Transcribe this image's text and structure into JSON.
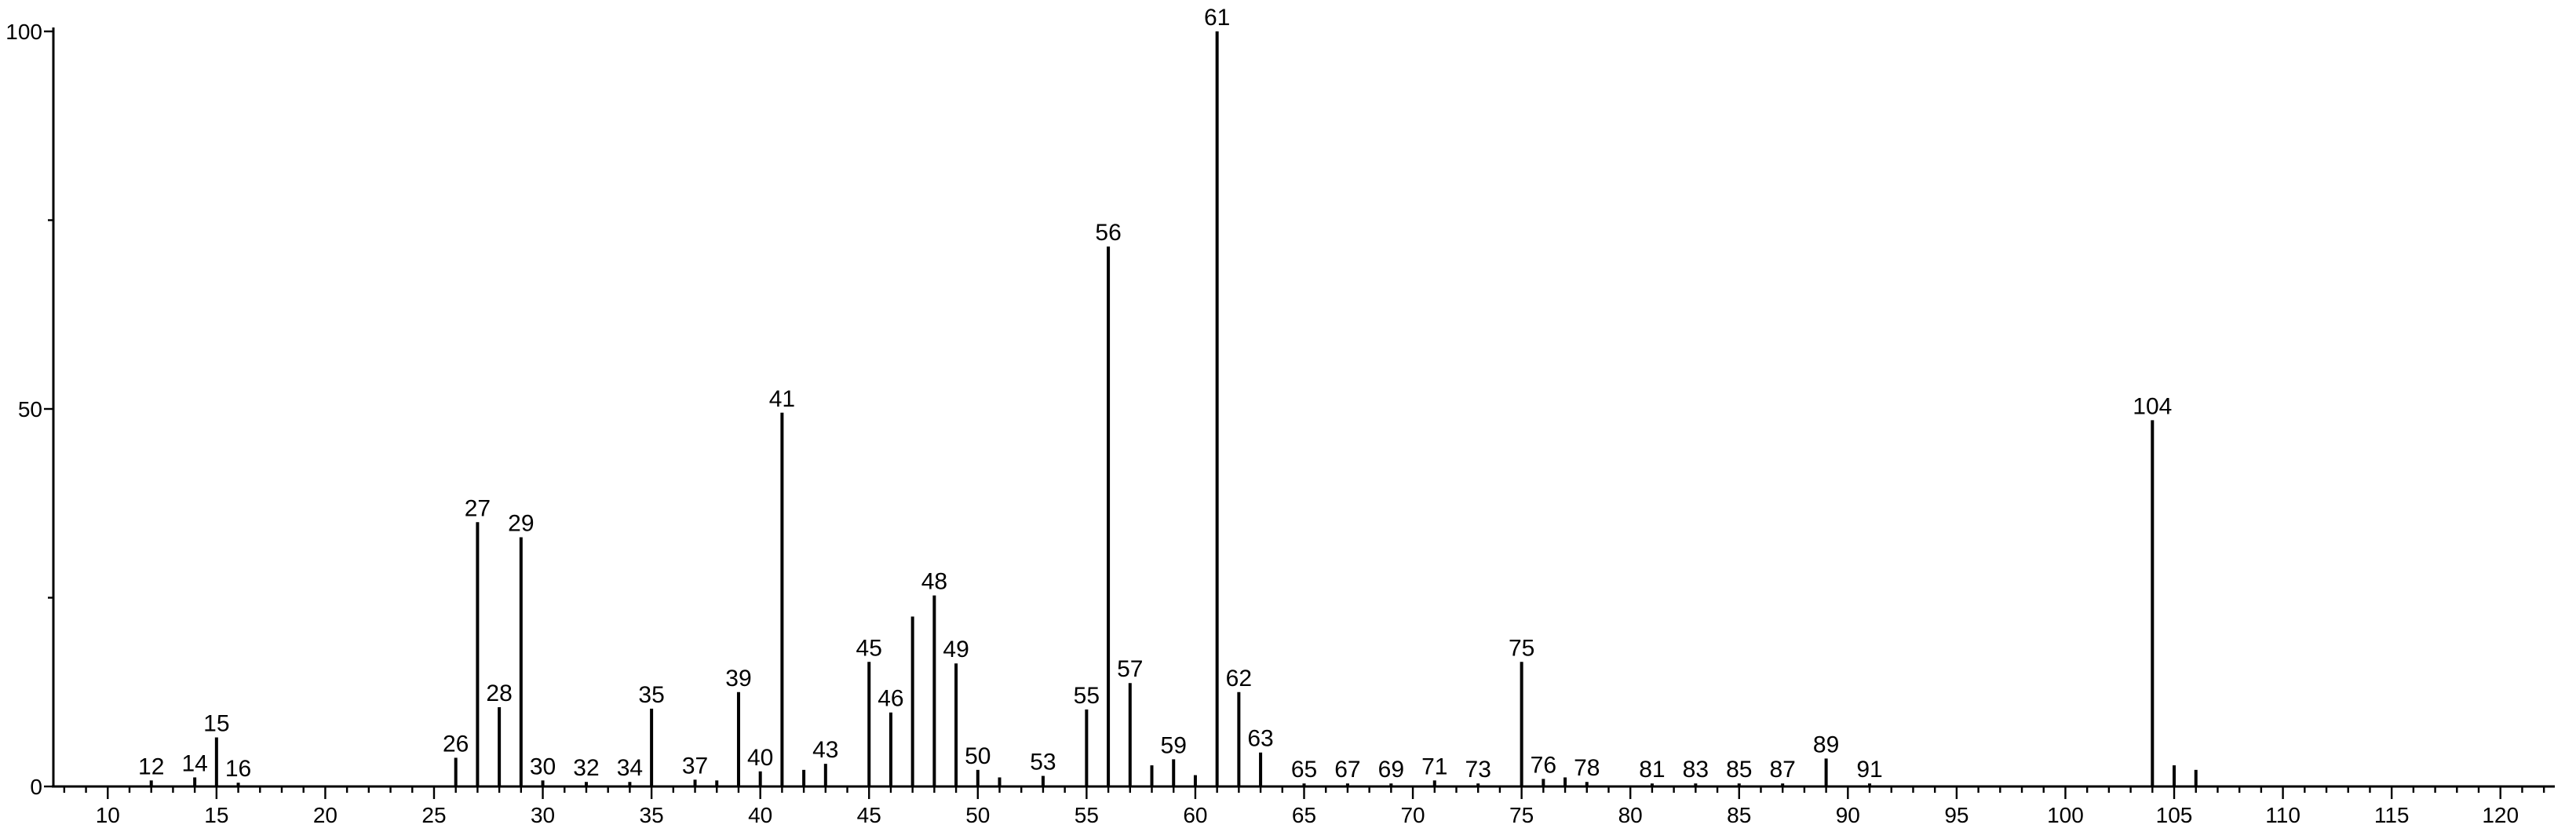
{
  "chart_data": {
    "type": "bar",
    "title": "",
    "xlabel": "",
    "ylabel": "",
    "xlim": [
      7.5,
      122.5
    ],
    "ylim": [
      0,
      100
    ],
    "grid": false,
    "legend": "none",
    "x_ticks": [
      10,
      15,
      20,
      25,
      30,
      35,
      40,
      45,
      50,
      55,
      60,
      65,
      70,
      75,
      80,
      85,
      90,
      95,
      100,
      105,
      110,
      115,
      120
    ],
    "y_ticks": [
      0,
      50,
      100
    ],
    "peaks": [
      {
        "mz": 12,
        "intensity": 0.8,
        "label": "12"
      },
      {
        "mz": 14,
        "intensity": 1.2,
        "label": "14"
      },
      {
        "mz": 15,
        "intensity": 6.5,
        "label": "15"
      },
      {
        "mz": 16,
        "intensity": 0.5,
        "label": "16"
      },
      {
        "mz": 26,
        "intensity": 3.8,
        "label": "26"
      },
      {
        "mz": 27,
        "intensity": 35,
        "label": "27"
      },
      {
        "mz": 28,
        "intensity": 10.5,
        "label": "28"
      },
      {
        "mz": 29,
        "intensity": 33,
        "label": "29"
      },
      {
        "mz": 30,
        "intensity": 0.8,
        "label": "30"
      },
      {
        "mz": 32,
        "intensity": 0.6,
        "label": "32"
      },
      {
        "mz": 34,
        "intensity": 0.6,
        "label": "34"
      },
      {
        "mz": 35,
        "intensity": 10.3,
        "label": "35"
      },
      {
        "mz": 37,
        "intensity": 0.9,
        "label": "37"
      },
      {
        "mz": 38,
        "intensity": 0.8,
        "label": ""
      },
      {
        "mz": 39,
        "intensity": 12.5,
        "label": "39"
      },
      {
        "mz": 40,
        "intensity": 2.0,
        "label": "40"
      },
      {
        "mz": 41,
        "intensity": 49.5,
        "label": "41"
      },
      {
        "mz": 42,
        "intensity": 2.2,
        "label": ""
      },
      {
        "mz": 43,
        "intensity": 3.0,
        "label": "43"
      },
      {
        "mz": 45,
        "intensity": 16.5,
        "label": "45"
      },
      {
        "mz": 46,
        "intensity": 9.8,
        "label": "46"
      },
      {
        "mz": 47,
        "intensity": 22.5,
        "label": ""
      },
      {
        "mz": 48,
        "intensity": 25.3,
        "label": "48"
      },
      {
        "mz": 49,
        "intensity": 16.3,
        "label": "49"
      },
      {
        "mz": 50,
        "intensity": 2.2,
        "label": "50"
      },
      {
        "mz": 51,
        "intensity": 1.2,
        "label": ""
      },
      {
        "mz": 53,
        "intensity": 1.4,
        "label": "53"
      },
      {
        "mz": 55,
        "intensity": 10.2,
        "label": "55"
      },
      {
        "mz": 56,
        "intensity": 71.5,
        "label": "56"
      },
      {
        "mz": 57,
        "intensity": 13.7,
        "label": "57"
      },
      {
        "mz": 58,
        "intensity": 2.8,
        "label": ""
      },
      {
        "mz": 59,
        "intensity": 3.6,
        "label": "59"
      },
      {
        "mz": 60,
        "intensity": 1.5,
        "label": ""
      },
      {
        "mz": 61,
        "intensity": 100,
        "label": "61"
      },
      {
        "mz": 62,
        "intensity": 12.5,
        "label": "62"
      },
      {
        "mz": 63,
        "intensity": 4.5,
        "label": "63"
      },
      {
        "mz": 65,
        "intensity": 0.4,
        "label": "65"
      },
      {
        "mz": 67,
        "intensity": 0.4,
        "label": "67"
      },
      {
        "mz": 69,
        "intensity": 0.4,
        "label": "69"
      },
      {
        "mz": 71,
        "intensity": 0.8,
        "label": "71"
      },
      {
        "mz": 73,
        "intensity": 0.4,
        "label": "73"
      },
      {
        "mz": 75,
        "intensity": 16.5,
        "label": "75"
      },
      {
        "mz": 76,
        "intensity": 1.0,
        "label": "76"
      },
      {
        "mz": 77,
        "intensity": 1.2,
        "label": ""
      },
      {
        "mz": 78,
        "intensity": 0.6,
        "label": "78"
      },
      {
        "mz": 81,
        "intensity": 0.4,
        "label": "81"
      },
      {
        "mz": 83,
        "intensity": 0.4,
        "label": "83"
      },
      {
        "mz": 85,
        "intensity": 0.4,
        "label": "85"
      },
      {
        "mz": 87,
        "intensity": 0.4,
        "label": "87"
      },
      {
        "mz": 89,
        "intensity": 3.7,
        "label": "89"
      },
      {
        "mz": 91,
        "intensity": 0.4,
        "label": "91"
      },
      {
        "mz": 104,
        "intensity": 48.5,
        "label": "104"
      },
      {
        "mz": 105,
        "intensity": 2.8,
        "label": ""
      },
      {
        "mz": 106,
        "intensity": 2.2,
        "label": ""
      }
    ]
  }
}
